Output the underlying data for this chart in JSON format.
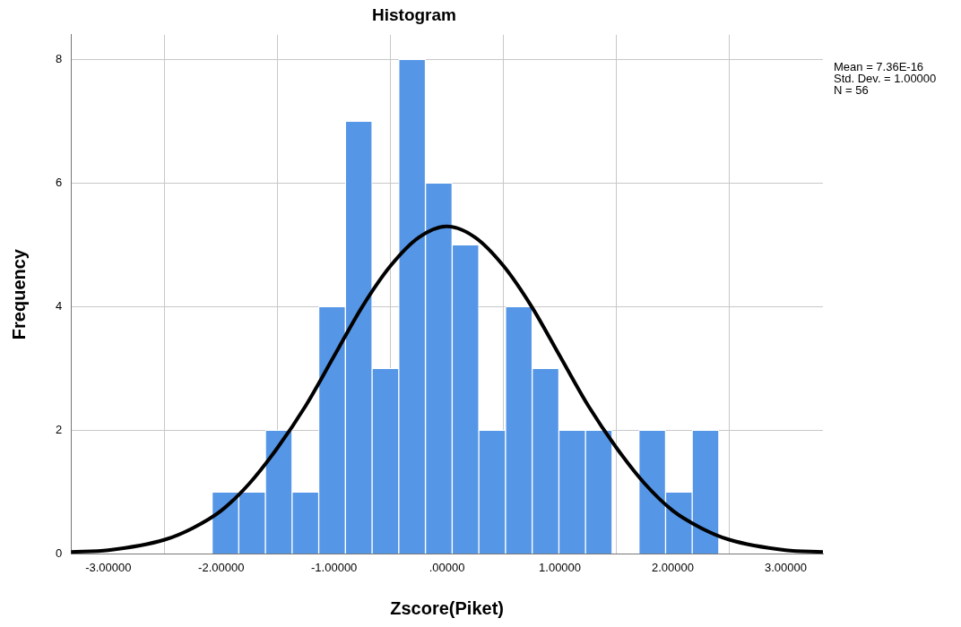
{
  "chart_data": {
    "type": "histogram",
    "title": "Histogram",
    "xlabel": "Zscore(Piket)",
    "ylabel": "Frequency",
    "annotations": [
      "Mean = 7.36E-16\nStd. Dev. = 1.00000\nN = 56"
    ],
    "series": [
      {
        "color": "#5596e6",
        "bins": [
          -2.08,
          -1.845,
          -1.608,
          -1.372,
          -1.136,
          -0.9,
          -0.663,
          -0.427,
          -0.191,
          0.046,
          0.282,
          0.518,
          0.755,
          0.991,
          1.227,
          1.463,
          1.7,
          1.936,
          2.172,
          2.408
        ],
        "values": [
          1,
          1,
          2,
          1,
          4,
          7,
          3,
          8,
          6,
          5,
          2,
          4,
          3,
          2,
          2,
          0,
          2,
          1,
          2
        ]
      },
      {
        "type": "line",
        "color": "#000000",
        "x": [
          -3.33,
          -3,
          -2.5,
          -2.25,
          -2,
          -1.75,
          -1.5,
          -1.25,
          -1,
          -0.75,
          -0.5,
          -0.25,
          0,
          0.25,
          0.5,
          0.75,
          1,
          1.25,
          1.5,
          1.75,
          2,
          2.25,
          2.5,
          3,
          3.33
        ],
        "values": [
          0.03,
          0.06,
          0.23,
          0.42,
          0.7,
          1.14,
          1.72,
          2.4,
          3.2,
          4,
          4.66,
          5.12,
          5.3,
          5.12,
          4.66,
          4,
          3.2,
          2.4,
          1.72,
          1.14,
          0.7,
          0.42,
          0.23,
          0.06,
          0.03
        ]
      }
    ],
    "xlim": [
      -3.33,
      3.33
    ],
    "ylim": [
      0,
      8.4
    ],
    "xticks": [
      {
        "value": -3,
        "label": "-3.00000"
      },
      {
        "value": -2,
        "label": "-2.00000"
      },
      {
        "value": -1,
        "label": "-1.00000"
      },
      {
        "value": 0,
        "label": ".00000"
      },
      {
        "value": 1,
        "label": "1.00000"
      },
      {
        "value": 2,
        "label": "2.00000"
      },
      {
        "value": 3,
        "label": "3.00000"
      }
    ],
    "yticks": [
      0,
      2,
      4,
      6,
      8
    ],
    "grid": true
  }
}
